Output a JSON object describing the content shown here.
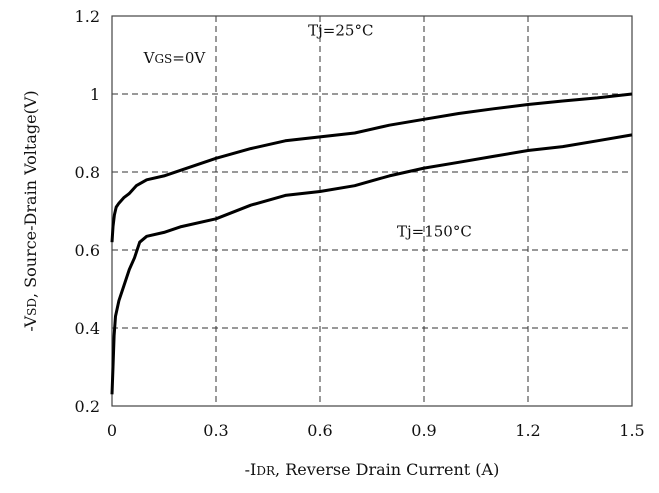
{
  "chart_data": {
    "type": "line",
    "xlabel": {
      "prefix": "-I",
      "sub": "DR",
      "rest": ", Reverse Drain Current (A)"
    },
    "ylabel": {
      "prefix": "-V",
      "sub": "SD",
      "rest": ", Source-Drain Voltage(V)"
    },
    "xlim": [
      0,
      1.5
    ],
    "ylim": [
      0.2,
      1.2
    ],
    "xticks": [
      "0",
      "0.3",
      "0.6",
      "0.9",
      "1.2",
      "1.5"
    ],
    "yticks": [
      "0.2",
      "0.4",
      "0.6",
      "0.8",
      "1",
      "1.2"
    ],
    "grid": true,
    "annotations": [
      {
        "id": "vgs",
        "prefix": "V",
        "sub": "GS",
        "rest": "=0V",
        "x": 0.18,
        "y": 1.08
      },
      {
        "id": "tj25",
        "prefix": "Tj=25°C",
        "sub": "",
        "rest": "",
        "x": 0.66,
        "y": 1.15
      },
      {
        "id": "tj150",
        "prefix": "Tj=150°C",
        "sub": "",
        "rest": "",
        "x": 0.93,
        "y": 0.635
      }
    ],
    "series": [
      {
        "x": [
          0.0,
          0.003,
          0.007,
          0.012,
          0.02,
          0.035,
          0.05,
          0.07,
          0.1,
          0.15,
          0.2,
          0.3,
          0.4,
          0.5,
          0.6,
          0.7,
          0.8,
          0.9,
          1.0,
          1.1,
          1.2,
          1.3,
          1.4,
          1.5
        ],
        "y": [
          0.62,
          0.66,
          0.69,
          0.71,
          0.72,
          0.735,
          0.745,
          0.765,
          0.78,
          0.79,
          0.805,
          0.835,
          0.86,
          0.88,
          0.89,
          0.9,
          0.92,
          0.935,
          0.95,
          0.962,
          0.973,
          0.982,
          0.99,
          1.0
        ]
      },
      {
        "x": [
          0.0,
          0.003,
          0.006,
          0.01,
          0.02,
          0.035,
          0.05,
          0.065,
          0.08,
          0.1,
          0.15,
          0.2,
          0.3,
          0.4,
          0.5,
          0.6,
          0.7,
          0.8,
          0.9,
          1.0,
          1.1,
          1.2,
          1.3,
          1.4,
          1.5
        ],
        "y": [
          0.23,
          0.3,
          0.38,
          0.43,
          0.47,
          0.51,
          0.55,
          0.58,
          0.62,
          0.635,
          0.645,
          0.66,
          0.68,
          0.715,
          0.74,
          0.75,
          0.765,
          0.79,
          0.81,
          0.825,
          0.84,
          0.855,
          0.865,
          0.88,
          0.895
        ]
      }
    ]
  }
}
